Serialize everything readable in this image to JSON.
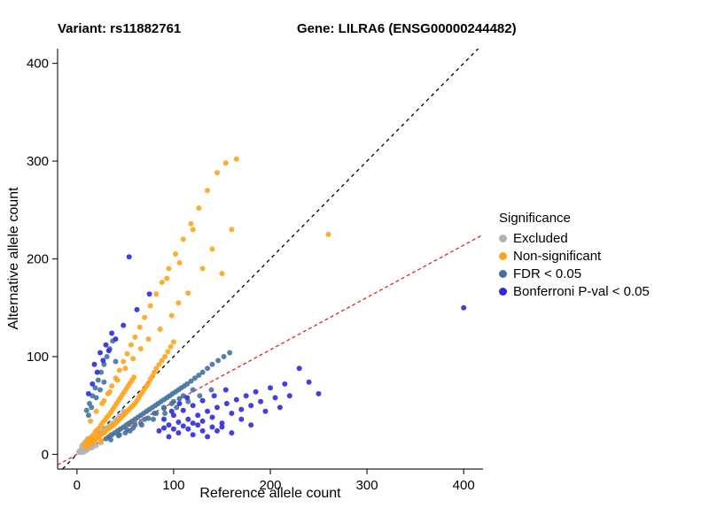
{
  "titles": {
    "variant": "Variant: rs11882761",
    "gene": "Gene: LILRA6 (ENSG00000244482)"
  },
  "chart_data": {
    "type": "scatter",
    "xlabel": "Reference allele count",
    "ylabel": "Alternative allele count",
    "legend_title": "Significance",
    "legend_position": "right",
    "grid": false,
    "xlim": [
      -20,
      420
    ],
    "ylim": [
      -15,
      415
    ],
    "xticks": [
      0,
      100,
      200,
      300,
      400
    ],
    "yticks": [
      0,
      100,
      200,
      300,
      400
    ],
    "lines": [
      {
        "name": "identity-line",
        "slope": 1,
        "intercept": 0,
        "color": "#000000",
        "dash": "4,4"
      },
      {
        "name": "fitted-ratio-line",
        "slope": 0.535,
        "intercept": 0,
        "color": "#E02323",
        "dash": "4,3"
      }
    ],
    "series": [
      {
        "name": "Excluded",
        "color": "#B3B3B3",
        "points": [
          [
            2,
            3
          ],
          [
            3,
            2
          ],
          [
            4,
            5
          ],
          [
            5,
            4
          ],
          [
            6,
            7
          ],
          [
            7,
            5
          ],
          [
            8,
            8
          ],
          [
            9,
            6
          ],
          [
            10,
            10
          ],
          [
            11,
            8
          ],
          [
            12,
            12
          ],
          [
            13,
            9
          ],
          [
            14,
            13
          ],
          [
            15,
            11
          ],
          [
            16,
            15
          ],
          [
            17,
            12
          ],
          [
            18,
            16
          ],
          [
            19,
            14
          ],
          [
            20,
            18
          ],
          [
            22,
            19
          ],
          [
            24,
            21
          ],
          [
            26,
            23
          ],
          [
            28,
            25
          ],
          [
            30,
            27
          ],
          [
            33,
            29
          ],
          [
            36,
            32
          ],
          [
            40,
            36
          ],
          [
            44,
            40
          ],
          [
            48,
            44
          ],
          [
            5,
            9
          ],
          [
            7,
            11
          ],
          [
            9,
            13
          ],
          [
            11,
            16
          ],
          [
            6,
            2
          ],
          [
            8,
            3
          ],
          [
            10,
            4
          ],
          [
            13,
            6
          ],
          [
            16,
            7
          ],
          [
            20,
            9
          ],
          [
            25,
            12
          ]
        ]
      },
      {
        "name": "Non-significant",
        "color": "#FFA41B",
        "points": [
          [
            8,
            9
          ],
          [
            9,
            12
          ],
          [
            10,
            8
          ],
          [
            11,
            14
          ],
          [
            12,
            10
          ],
          [
            13,
            16
          ],
          [
            14,
            11
          ],
          [
            15,
            18
          ],
          [
            16,
            13
          ],
          [
            17,
            20
          ],
          [
            18,
            14
          ],
          [
            19,
            23
          ],
          [
            20,
            16
          ],
          [
            21,
            25
          ],
          [
            22,
            18
          ],
          [
            23,
            27
          ],
          [
            24,
            19
          ],
          [
            25,
            30
          ],
          [
            26,
            21
          ],
          [
            27,
            33
          ],
          [
            28,
            22
          ],
          [
            29,
            35
          ],
          [
            30,
            24
          ],
          [
            31,
            38
          ],
          [
            32,
            26
          ],
          [
            33,
            40
          ],
          [
            34,
            27
          ],
          [
            35,
            43
          ],
          [
            36,
            29
          ],
          [
            37,
            46
          ],
          [
            38,
            30
          ],
          [
            39,
            49
          ],
          [
            40,
            32
          ],
          [
            41,
            52
          ],
          [
            42,
            34
          ],
          [
            43,
            55
          ],
          [
            44,
            36
          ],
          [
            45,
            58
          ],
          [
            46,
            38
          ],
          [
            47,
            61
          ],
          [
            48,
            40
          ],
          [
            49,
            64
          ],
          [
            50,
            42
          ],
          [
            51,
            67
          ],
          [
            52,
            44
          ],
          [
            53,
            70
          ],
          [
            54,
            46
          ],
          [
            55,
            73
          ],
          [
            56,
            48
          ],
          [
            57,
            76
          ],
          [
            58,
            50
          ],
          [
            59,
            79
          ],
          [
            60,
            52
          ],
          [
            62,
            55
          ],
          [
            64,
            58
          ],
          [
            66,
            61
          ],
          [
            68,
            64
          ],
          [
            70,
            67
          ],
          [
            72,
            70
          ],
          [
            74,
            73
          ],
          [
            76,
            77
          ],
          [
            78,
            80
          ],
          [
            80,
            84
          ],
          [
            82,
            88
          ],
          [
            85,
            92
          ],
          [
            88,
            96
          ],
          [
            91,
            100
          ],
          [
            94,
            105
          ],
          [
            97,
            110
          ],
          [
            100,
            115
          ],
          [
            25,
            14
          ],
          [
            35,
            20
          ],
          [
            45,
            26
          ],
          [
            55,
            32
          ],
          [
            28,
            55
          ],
          [
            32,
            62
          ],
          [
            36,
            70
          ],
          [
            40,
            78
          ],
          [
            44,
            86
          ],
          [
            48,
            95
          ],
          [
            52,
            103
          ],
          [
            56,
            112
          ],
          [
            60,
            120
          ],
          [
            65,
            130
          ],
          [
            70,
            140
          ],
          [
            76,
            152
          ],
          [
            82,
            164
          ],
          [
            88,
            176
          ],
          [
            95,
            190
          ],
          [
            102,
            205
          ],
          [
            110,
            220
          ],
          [
            118,
            236
          ],
          [
            126,
            252
          ],
          [
            135,
            270
          ],
          [
            145,
            288
          ],
          [
            154,
            298
          ],
          [
            165,
            302
          ],
          [
            120,
            230
          ],
          [
            106,
            196
          ],
          [
            93,
            180
          ],
          [
            160,
            230
          ],
          [
            150,
            185
          ],
          [
            140,
            210
          ],
          [
            130,
            190
          ],
          [
            115,
            165
          ],
          [
            105,
            155
          ],
          [
            98,
            142
          ],
          [
            86,
            128
          ],
          [
            74,
            118
          ],
          [
            66,
            108
          ],
          [
            58,
            98
          ],
          [
            50,
            88
          ],
          [
            42,
            76
          ],
          [
            34,
            64
          ],
          [
            26,
            52
          ],
          [
            20,
            44
          ],
          [
            14,
            34
          ],
          [
            260,
            225
          ]
        ]
      },
      {
        "name": "FDR < 0.05",
        "color": "#44729F",
        "points": [
          [
            30,
            16
          ],
          [
            33,
            18
          ],
          [
            36,
            20
          ],
          [
            39,
            22
          ],
          [
            42,
            24
          ],
          [
            45,
            26
          ],
          [
            48,
            28
          ],
          [
            51,
            30
          ],
          [
            54,
            32
          ],
          [
            57,
            34
          ],
          [
            60,
            36
          ],
          [
            63,
            38
          ],
          [
            66,
            40
          ],
          [
            69,
            42
          ],
          [
            72,
            44
          ],
          [
            75,
            46
          ],
          [
            78,
            48
          ],
          [
            81,
            50
          ],
          [
            84,
            52
          ],
          [
            87,
            54
          ],
          [
            90,
            56
          ],
          [
            93,
            58
          ],
          [
            96,
            60
          ],
          [
            99,
            62
          ],
          [
            102,
            64
          ],
          [
            105,
            66
          ],
          [
            108,
            68
          ],
          [
            111,
            70
          ],
          [
            114,
            72
          ],
          [
            118,
            75
          ],
          [
            122,
            78
          ],
          [
            126,
            81
          ],
          [
            130,
            84
          ],
          [
            135,
            88
          ],
          [
            140,
            92
          ],
          [
            146,
            96
          ],
          [
            152,
            100
          ],
          [
            158,
            104
          ],
          [
            60,
            30
          ],
          [
            70,
            36
          ],
          [
            80,
            42
          ],
          [
            90,
            48
          ],
          [
            100,
            54
          ],
          [
            110,
            60
          ],
          [
            120,
            66
          ],
          [
            50,
            22
          ],
          [
            58,
            27
          ],
          [
            66,
            32
          ],
          [
            74,
            37
          ],
          [
            82,
            42
          ],
          [
            90,
            47
          ],
          [
            98,
            52
          ],
          [
            106,
            57
          ],
          [
            44,
            20
          ],
          [
            52,
            25
          ],
          [
            35,
            15
          ],
          [
            43,
            19
          ],
          [
            55,
            24
          ],
          [
            67,
            30
          ],
          [
            79,
            36
          ],
          [
            91,
            42
          ],
          [
            103,
            48
          ],
          [
            115,
            54
          ],
          [
            127,
            60
          ],
          [
            139,
            66
          ],
          [
            10,
            45
          ],
          [
            13,
            52
          ],
          [
            16,
            60
          ],
          [
            19,
            68
          ],
          [
            22,
            76
          ],
          [
            25,
            84
          ],
          [
            28,
            92
          ],
          [
            31,
            100
          ],
          [
            34,
            108
          ],
          [
            37,
            116
          ],
          [
            20,
            58
          ],
          [
            24,
            66
          ],
          [
            28,
            74
          ],
          [
            15,
            48
          ],
          [
            40,
            95
          ],
          [
            12,
            40
          ]
        ]
      },
      {
        "name": "Bonferroni P-val < 0.05",
        "color": "#2B2BDF",
        "points": [
          [
            85,
            24
          ],
          [
            90,
            27
          ],
          [
            95,
            30
          ],
          [
            100,
            26
          ],
          [
            105,
            33
          ],
          [
            110,
            29
          ],
          [
            115,
            36
          ],
          [
            120,
            32
          ],
          [
            125,
            40
          ],
          [
            130,
            34
          ],
          [
            135,
            44
          ],
          [
            140,
            38
          ],
          [
            145,
            48
          ],
          [
            150,
            28
          ],
          [
            155,
            52
          ],
          [
            160,
            42
          ],
          [
            165,
            56
          ],
          [
            170,
            46
          ],
          [
            175,
            60
          ],
          [
            180,
            50
          ],
          [
            185,
            64
          ],
          [
            190,
            54
          ],
          [
            195,
            44
          ],
          [
            200,
            68
          ],
          [
            205,
            58
          ],
          [
            210,
            48
          ],
          [
            215,
            72
          ],
          [
            220,
            60
          ],
          [
            230,
            88
          ],
          [
            240,
            74
          ],
          [
            250,
            62
          ],
          [
            120,
            20
          ],
          [
            130,
            24
          ],
          [
            140,
            28
          ],
          [
            150,
            32
          ],
          [
            160,
            22
          ],
          [
            170,
            36
          ],
          [
            180,
            30
          ],
          [
            95,
            18
          ],
          [
            105,
            22
          ],
          [
            115,
            26
          ],
          [
            125,
            30
          ],
          [
            135,
            18
          ],
          [
            145,
            24
          ],
          [
            100,
            40
          ],
          [
            110,
            45
          ],
          [
            120,
            50
          ],
          [
            130,
            55
          ],
          [
            142,
            60
          ],
          [
            154,
            66
          ],
          [
            90,
            36
          ],
          [
            98,
            44
          ],
          [
            106,
            52
          ],
          [
            114,
            58
          ],
          [
            400,
            150
          ],
          [
            54,
            202
          ],
          [
            75,
            164
          ],
          [
            62,
            148
          ],
          [
            48,
            132
          ],
          [
            40,
            118
          ],
          [
            33,
            106
          ],
          [
            27,
            96
          ],
          [
            21,
            84
          ],
          [
            16,
            72
          ],
          [
            12,
            62
          ],
          [
            18,
            92
          ],
          [
            24,
            104
          ],
          [
            30,
            112
          ],
          [
            36,
            124
          ]
        ]
      }
    ]
  }
}
